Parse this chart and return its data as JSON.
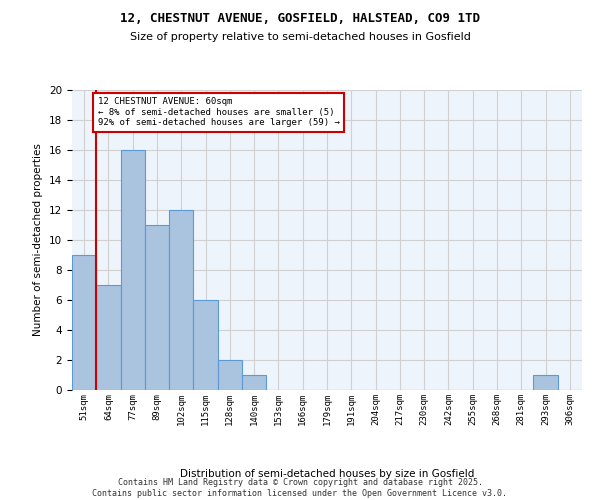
{
  "title1": "12, CHESTNUT AVENUE, GOSFIELD, HALSTEAD, CO9 1TD",
  "title2": "Size of property relative to semi-detached houses in Gosfield",
  "xlabel": "Distribution of semi-detached houses by size in Gosfield",
  "ylabel": "Number of semi-detached properties",
  "bins": [
    "51sqm",
    "64sqm",
    "77sqm",
    "89sqm",
    "102sqm",
    "115sqm",
    "128sqm",
    "140sqm",
    "153sqm",
    "166sqm",
    "179sqm",
    "191sqm",
    "204sqm",
    "217sqm",
    "230sqm",
    "242sqm",
    "255sqm",
    "268sqm",
    "281sqm",
    "293sqm",
    "306sqm"
  ],
  "values": [
    9,
    7,
    16,
    11,
    12,
    6,
    2,
    1,
    0,
    0,
    0,
    0,
    0,
    0,
    0,
    0,
    0,
    0,
    0,
    1,
    0
  ],
  "bar_color": "#aac4e0",
  "bar_edge_color": "#5b9bd5",
  "highlight_line_color": "#cc0000",
  "annotation_text": "12 CHESTNUT AVENUE: 60sqm\n← 8% of semi-detached houses are smaller (5)\n92% of semi-detached houses are larger (59) →",
  "annotation_box_color": "#cc0000",
  "ylim": [
    0,
    20
  ],
  "yticks": [
    0,
    2,
    4,
    6,
    8,
    10,
    12,
    14,
    16,
    18,
    20
  ],
  "grid_color": "#d0d0d0",
  "bg_color": "#eef4fb",
  "footer": "Contains HM Land Registry data © Crown copyright and database right 2025.\nContains public sector information licensed under the Open Government Licence v3.0."
}
